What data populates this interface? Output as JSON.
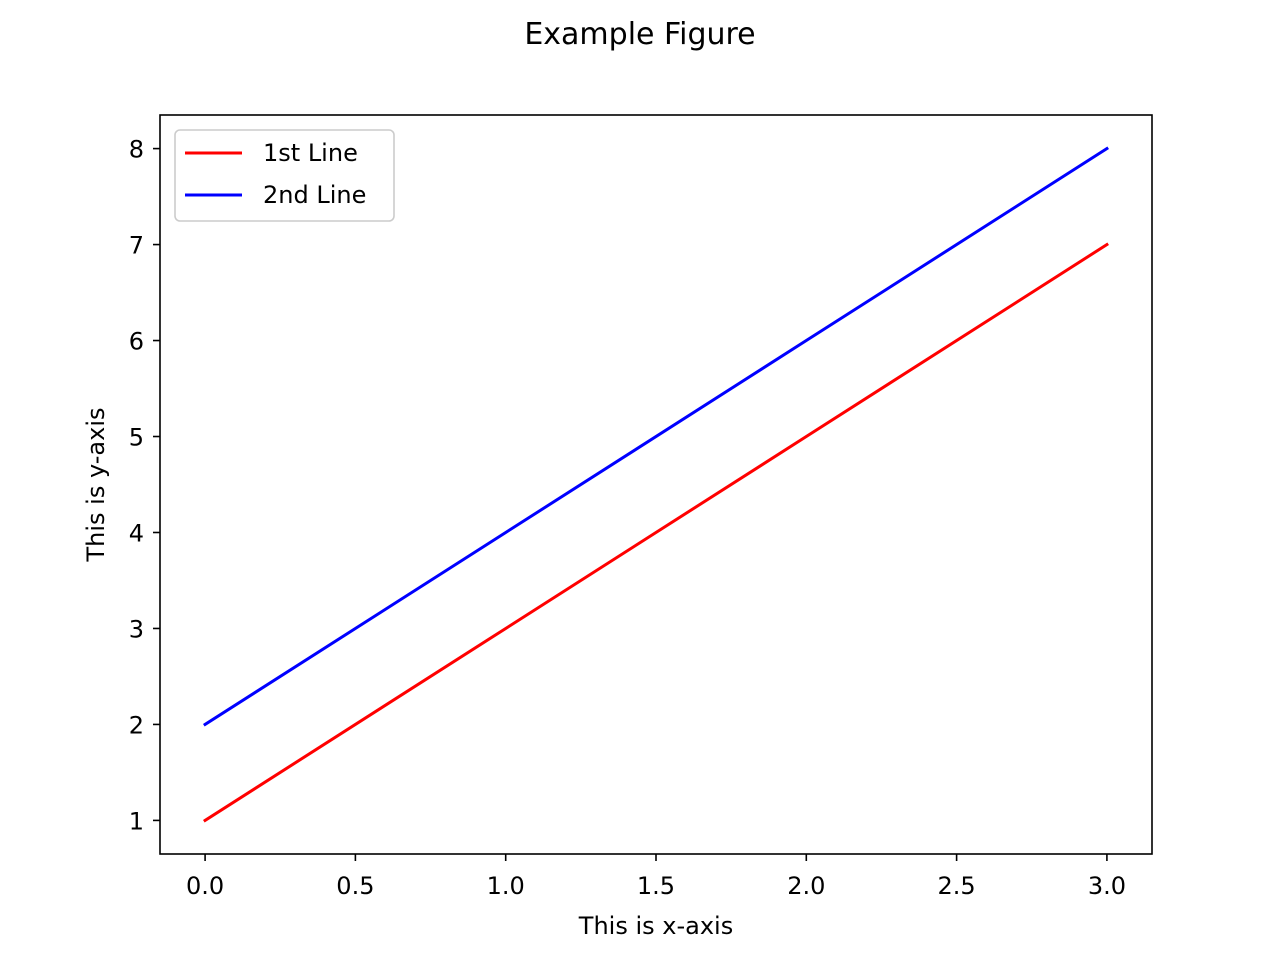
{
  "chart_data": {
    "type": "line",
    "title": "Example Figure",
    "xlabel": "This is x-axis",
    "ylabel": "This is y-axis",
    "xlim": [
      -0.15,
      3.15
    ],
    "ylim": [
      0.65,
      8.35
    ],
    "xticks": [
      0.0,
      0.5,
      1.0,
      1.5,
      2.0,
      2.5,
      3.0
    ],
    "xtick_labels": [
      "0.0",
      "0.5",
      "1.0",
      "1.5",
      "2.0",
      "2.5",
      "3.0"
    ],
    "yticks": [
      1,
      2,
      3,
      4,
      5,
      6,
      7,
      8
    ],
    "ytick_labels": [
      "1",
      "2",
      "3",
      "4",
      "5",
      "6",
      "7",
      "8"
    ],
    "grid": false,
    "legend_position": "upper-left",
    "x": [
      0,
      1,
      2,
      3
    ],
    "series": [
      {
        "name": "1st Line",
        "color": "#ff0000",
        "values": [
          1,
          3,
          5,
          7
        ]
      },
      {
        "name": "2nd Line",
        "color": "#0000ff",
        "values": [
          2,
          4,
          6,
          8
        ]
      }
    ]
  }
}
